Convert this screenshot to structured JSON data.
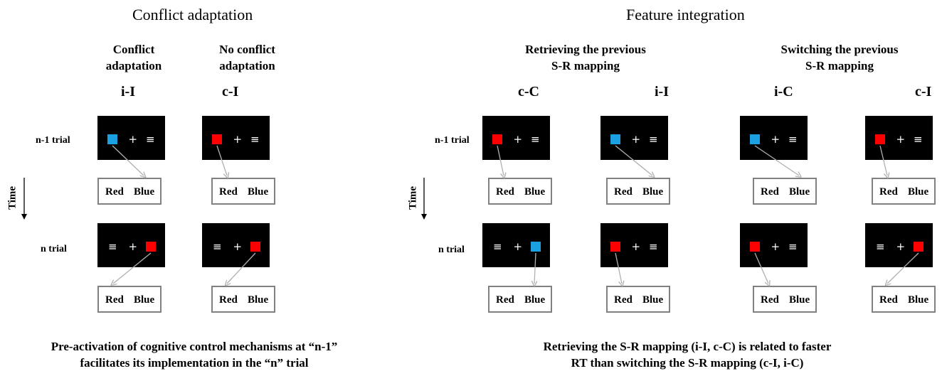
{
  "colors": {
    "red": "#ff0000",
    "blue": "#1ba1e2",
    "screen": "#000000",
    "arrow": "#b0b0b0",
    "box_border": "#808080"
  },
  "left_panel": {
    "title": "Conflict adaptation",
    "headers": [
      {
        "line1": "Conflict",
        "line2": "adaptation",
        "code": "i-I"
      },
      {
        "line1": "No conflict",
        "line2": "adaptation",
        "code": "c-I"
      }
    ],
    "caption_line1": "Pre-activation of cognitive control mechanisms at “n-1”",
    "caption_line2": "facilitates its implementation in the “n” trial"
  },
  "right_panel": {
    "title": "Feature integration",
    "groups": [
      {
        "line1": "Retrieving the previous",
        "line2": "S-R mapping"
      },
      {
        "line1": "Switching the previous",
        "line2": "S-R mapping"
      }
    ],
    "codes": [
      "c-C",
      "i-I",
      "i-C",
      "c-I"
    ],
    "caption_line1": "Retrieving the S-R mapping (i-I,  c-C) is related to faster",
    "caption_line2": "RT than switching the S-R mapping (c-I,  i-C)"
  },
  "row_labels": {
    "n1": "n-1 trial",
    "n": "n trial"
  },
  "time_label": "Time",
  "screen_glyphs": {
    "fixation": "+",
    "distractor": "≡"
  },
  "response_labels": {
    "red": "Red",
    "blue": "Blue"
  },
  "columns": [
    {
      "n1_color": "blue",
      "n_color": "red"
    },
    {
      "n1_color": "red",
      "n_color": "red"
    },
    {
      "n1_color": "red",
      "n_color": "blue"
    },
    {
      "n1_color": "blue",
      "n_color": "red"
    },
    {
      "n1_color": "blue",
      "n_color": "red"
    },
    {
      "n1_color": "red",
      "n_color": "red"
    }
  ]
}
